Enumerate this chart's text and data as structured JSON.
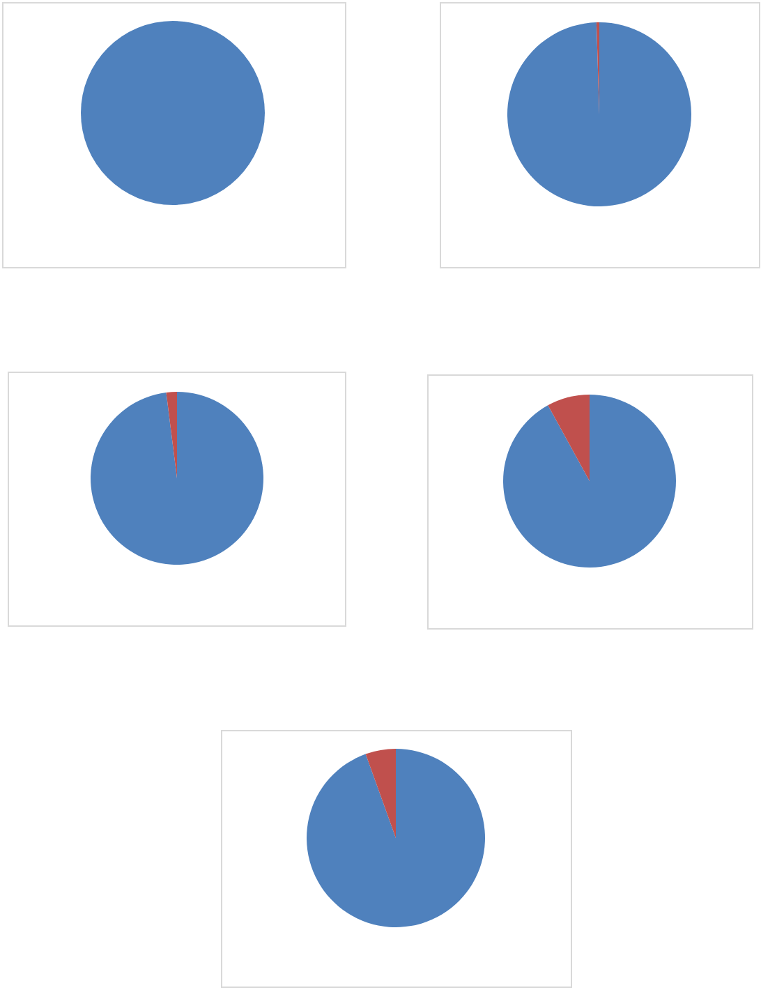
{
  "chart_data": [
    {
      "type": "pie",
      "categories": [
        null,
        null
      ],
      "values": [
        100,
        0
      ],
      "colors": [
        "#4f81bd",
        "#c0504d"
      ]
    },
    {
      "type": "pie",
      "categories": [
        null,
        null
      ],
      "values": [
        99.5,
        0.5
      ],
      "colors": [
        "#4f81bd",
        "#c0504d"
      ]
    },
    {
      "type": "pie",
      "categories": [
        null,
        null
      ],
      "values": [
        98,
        2
      ],
      "colors": [
        "#4f81bd",
        "#c0504d"
      ]
    },
    {
      "type": "pie",
      "categories": [
        null,
        null
      ],
      "values": [
        92,
        8
      ],
      "colors": [
        "#4f81bd",
        "#c0504d"
      ]
    },
    {
      "type": "pie",
      "categories": [
        null,
        null
      ],
      "values": [
        94.5,
        5.5
      ],
      "colors": [
        "#4f81bd",
        "#c0504d"
      ]
    }
  ]
}
